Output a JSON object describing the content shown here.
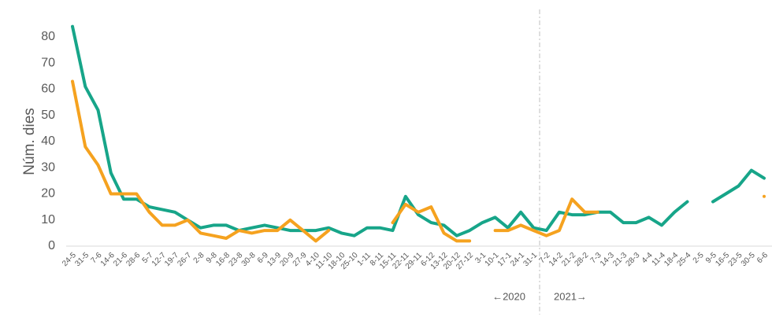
{
  "chart_data": {
    "type": "line",
    "ylabel": "Núm. dies",
    "categories": [
      "24-5",
      "31-5",
      "7-6",
      "14-6",
      "21-6",
      "28-6",
      "5-7",
      "12-7",
      "19-7",
      "26-7",
      "2-8",
      "9-8",
      "16-8",
      "23-8",
      "30-8",
      "6-9",
      "13-9",
      "20-9",
      "27-9",
      "4-10",
      "11-10",
      "18-10",
      "25-10",
      "1-11",
      "8-11",
      "15-11",
      "22-11",
      "29-11",
      "6-12",
      "13-12",
      "20-12",
      "27-12",
      "3-1",
      "10-1",
      "17-1",
      "24-1",
      "31-1",
      "7-2",
      "14-2",
      "21-2",
      "28-2",
      "7-3",
      "14-3",
      "21-3",
      "28-3",
      "4-4",
      "11-4",
      "18-4",
      "25-4",
      "2-5",
      "9-5",
      "16-5",
      "23-5",
      "30-5",
      "6-6"
    ],
    "series": [
      {
        "color": "#17a589",
        "values": [
          84,
          61,
          52,
          28,
          18,
          18,
          15,
          14,
          13,
          10,
          7,
          8,
          8,
          6,
          7,
          8,
          7,
          6,
          6,
          6,
          7,
          5,
          4,
          7,
          7,
          6,
          19,
          12,
          9,
          8,
          4,
          6,
          9,
          11,
          7,
          13,
          7,
          6,
          13,
          12,
          12,
          13,
          13,
          9,
          9,
          11,
          8,
          13,
          17,
          null,
          17,
          20,
          23,
          29,
          26
        ]
      },
      {
        "color": "#f5a21f",
        "values": [
          63,
          38,
          31,
          20,
          20,
          20,
          13,
          8,
          8,
          10,
          5,
          4,
          3,
          6,
          5,
          6,
          6,
          10,
          6,
          2,
          6,
          null,
          null,
          null,
          null,
          9,
          16,
          13,
          15,
          5,
          2,
          2,
          null,
          6,
          6,
          8,
          6,
          4,
          6,
          18,
          13,
          13,
          null,
          null,
          null,
          null,
          null,
          null,
          null,
          null,
          null,
          null,
          null,
          null,
          19
        ]
      }
    ],
    "ylim": [
      0,
      85
    ],
    "yticks": [
      0,
      10,
      20,
      30,
      40,
      50,
      60,
      70,
      80
    ],
    "annotations": [
      "←2020",
      "2021→"
    ]
  }
}
